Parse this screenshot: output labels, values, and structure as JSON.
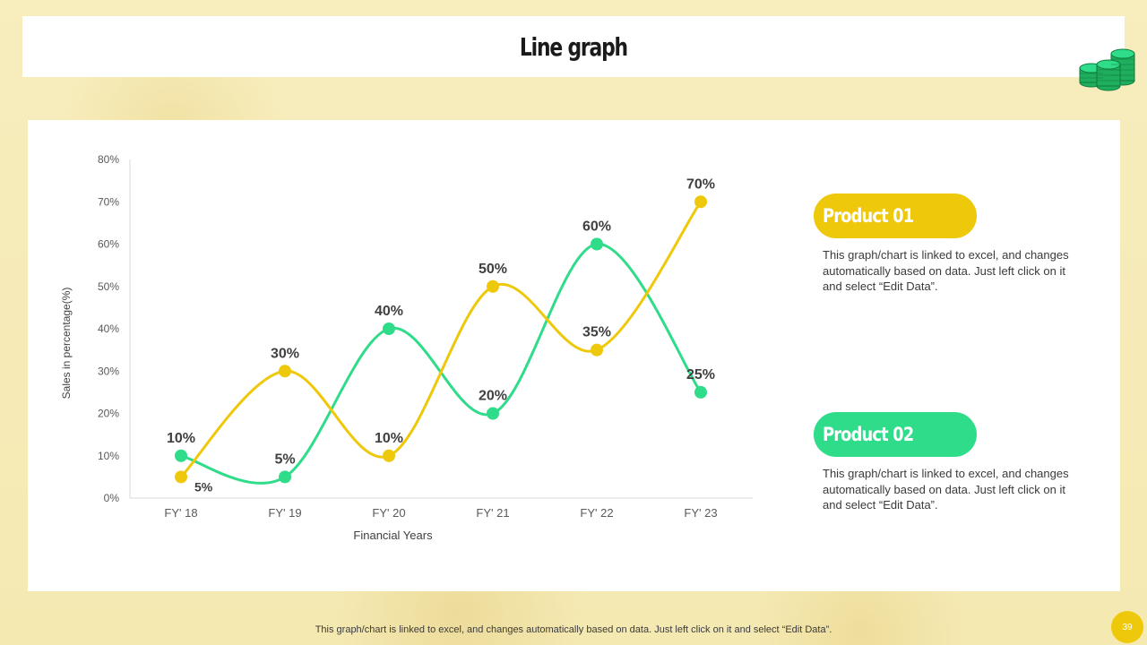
{
  "title": "Line graph",
  "colors": {
    "product1": "#eec80a",
    "product2": "#2fdc89",
    "page_number_badge": "#eec80a"
  },
  "legend": [
    {
      "label": "Product 01",
      "text": "This graph/chart is linked to excel, and changes automatically based on data. Just left click on it and select “Edit Data”."
    },
    {
      "label": "Product 02",
      "text": "This graph/chart is linked to excel, and changes automatically based on data. Just left click on it and select “Edit Data”."
    }
  ],
  "footer": "This graph/chart is linked to excel, and changes automatically based on data. Just left click on it and select “Edit Data”.",
  "page_number": "39",
  "chart_data": {
    "type": "line",
    "categories": [
      "FY' 18",
      "FY' 19",
      "FY' 20",
      "FY' 21",
      "FY' 22",
      "FY' 23"
    ],
    "series": [
      {
        "name": "Product 01",
        "color": "#eec80a",
        "values": [
          5,
          30,
          10,
          50,
          35,
          70
        ]
      },
      {
        "name": "Product 02",
        "color": "#2fdc89",
        "values": [
          10,
          5,
          40,
          20,
          60,
          25
        ]
      }
    ],
    "xlabel": "Financial Years",
    "ylabel": "Sales in percentage(%)",
    "ylim": [
      0,
      80
    ],
    "yticks": [
      0,
      10,
      20,
      30,
      40,
      50,
      60,
      70,
      80
    ],
    "value_suffix": "%",
    "grid": false,
    "smooth": true
  }
}
